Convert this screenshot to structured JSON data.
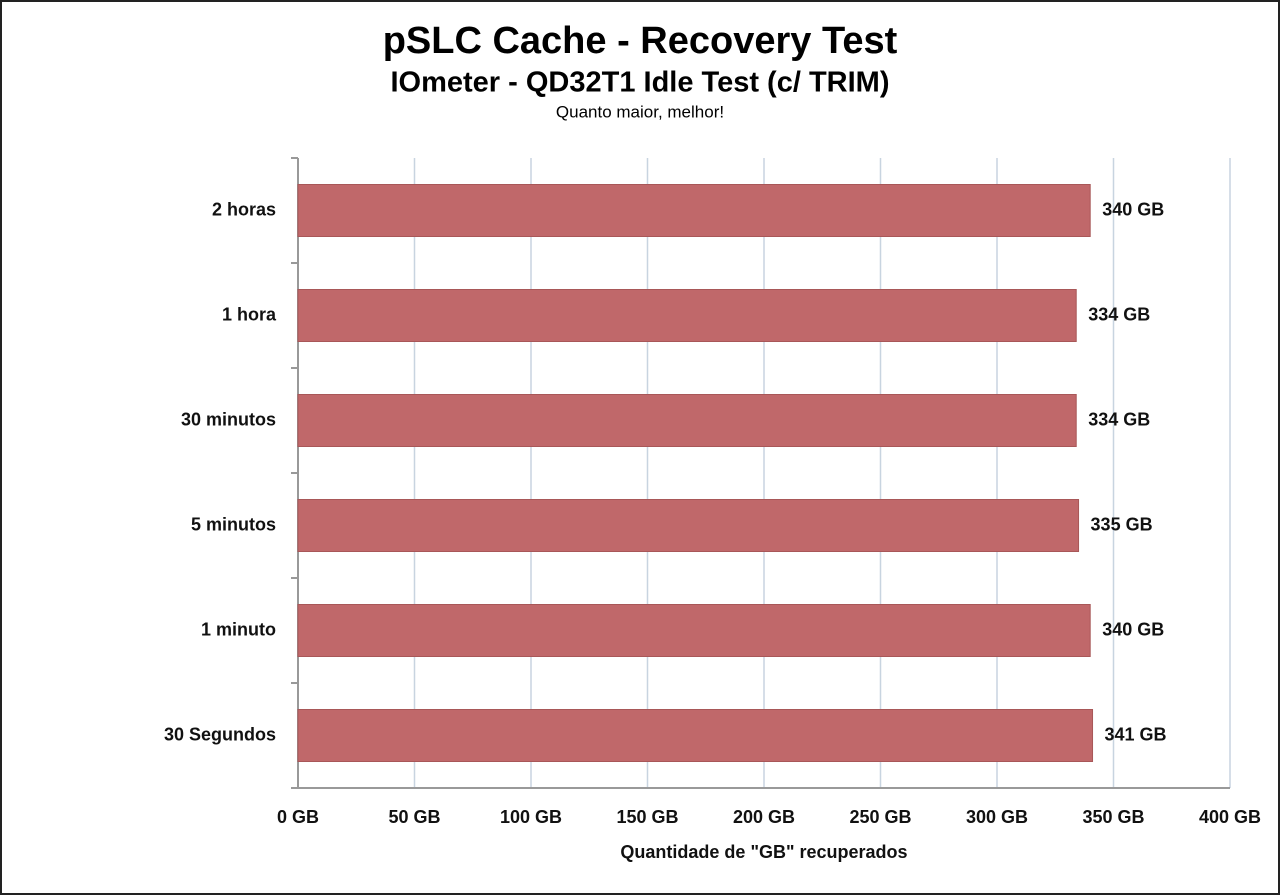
{
  "chart_data": {
    "type": "hbar",
    "title": "pSLC Cache - Recovery Test",
    "subtitle": "IOmeter - QD32T1 Idle Test (c/ TRIM)",
    "note": "Quanto maior, melhor!",
    "x_label": "Quantidade de \"GB\" recuperados",
    "categories": [
      "2 horas",
      "1 hora",
      "30 minutos",
      "5 minutos",
      "1 minuto",
      "30 Segundos"
    ],
    "values": [
      340,
      334,
      334,
      335,
      340,
      341
    ],
    "value_labels": [
      "340 GB",
      "334 GB",
      "334 GB",
      "335 GB",
      "340 GB",
      "341 GB"
    ],
    "color": "#c0686a",
    "xlim": [
      0,
      400
    ],
    "xticks": [
      {
        "value": 0,
        "label": "0 GB"
      },
      {
        "value": 50,
        "label": "50 GB"
      },
      {
        "value": 100,
        "label": "100 GB"
      },
      {
        "value": 150,
        "label": "150 GB"
      },
      {
        "value": 200,
        "label": "200 GB"
      },
      {
        "value": 250,
        "label": "250 GB"
      },
      {
        "value": 300,
        "label": "300 GB"
      },
      {
        "value": 350,
        "label": "350 GB"
      },
      {
        "value": 400,
        "label": "400 GB"
      }
    ],
    "grid": true
  }
}
